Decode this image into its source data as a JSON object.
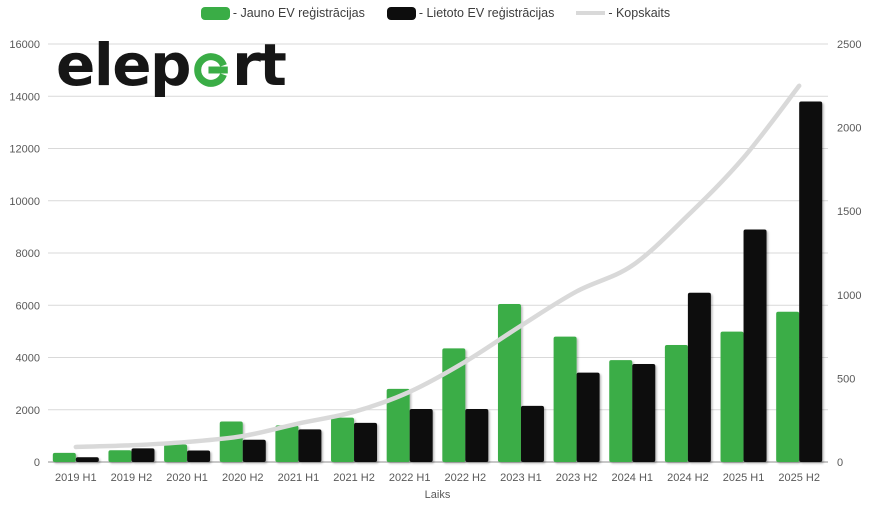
{
  "logo": {
    "text_before_mark": "elep",
    "text_after_mark": "rt",
    "mark_color": "#3aad46",
    "text_color": "#161616"
  },
  "legend": {
    "items": [
      {
        "label": "- Jauno EV reģistrācijas",
        "marker": "green-swatch",
        "color": "#3aad46"
      },
      {
        "label": "- Lietoto EV reģistrācijas",
        "marker": "black-swatch",
        "color": "#0d0d0d"
      },
      {
        "label": "- Kopskaits",
        "marker": "gray-line",
        "color": "#d9d9d9"
      }
    ]
  },
  "chart_data": {
    "type": "bar",
    "title": "",
    "categories": [
      "2019 H1",
      "2019 H2",
      "2020 H1",
      "2020 H2",
      "2021 H1",
      "2021 H2",
      "2022 H1",
      "2022 H2",
      "2023 H1",
      "2023 H2",
      "2024 H1",
      "2024 H2",
      "2025 H1",
      "2025 H2"
    ],
    "series": [
      {
        "name": "Jauno EV reģistrācijas",
        "type": "bar",
        "axis": "left",
        "color": "#3aad46",
        "values": [
          350,
          450,
          670,
          1550,
          1400,
          1700,
          2800,
          4350,
          6050,
          4800,
          3900,
          4480,
          4990,
          5750
        ]
      },
      {
        "name": "Lietoto EV reģistrācijas",
        "type": "bar",
        "axis": "left",
        "color": "#0d0d0d",
        "values": [
          180,
          520,
          440,
          850,
          1250,
          1500,
          2030,
          2030,
          2150,
          3420,
          3750,
          6480,
          8900,
          13800
        ]
      },
      {
        "name": "Kopskaits",
        "type": "line",
        "axis": "right",
        "color": "#d9d9d9",
        "values": [
          90,
          100,
          120,
          155,
          230,
          300,
          420,
          600,
          815,
          1020,
          1175,
          1475,
          1820,
          2250
        ]
      }
    ],
    "xlabel": "Laiks",
    "axes": {
      "left": {
        "min": 0,
        "max": 16000,
        "step": 2000,
        "tick_labels": [
          "0",
          "2000",
          "4000",
          "6000",
          "8000",
          "10000",
          "12000",
          "14000",
          "16000"
        ]
      },
      "right": {
        "min": 0,
        "max": 2500,
        "step": 500,
        "tick_labels": [
          "0",
          "500",
          "1000",
          "1500",
          "2000",
          "2500"
        ]
      }
    },
    "grid": true,
    "legend_position": "top",
    "axis_text_color": "#595959",
    "gridline_color": "#d9d9d9",
    "baseline_color": "#a6a6a6"
  }
}
